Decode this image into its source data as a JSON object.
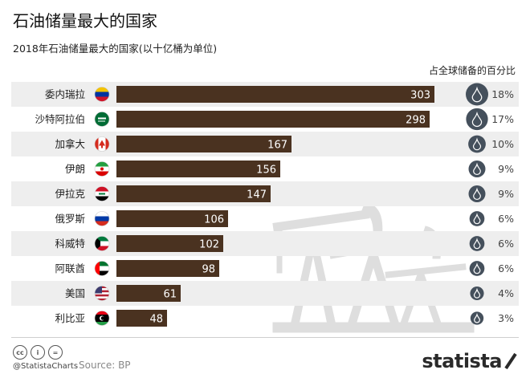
{
  "header": {
    "title": "石油储量最大的国家",
    "subtitle": "2018年石油储量最大的国家(以十亿桶为单位)",
    "column_header": "占全球储备的百分比"
  },
  "chart_data": {
    "type": "bar",
    "orientation": "horizontal",
    "categories": [
      "委内瑞拉",
      "沙特阿拉伯",
      "加拿大",
      "伊朗",
      "伊拉克",
      "俄罗斯",
      "科威特",
      "阿联酋",
      "美国",
      "利比亚"
    ],
    "values": [
      303,
      298,
      167,
      156,
      147,
      106,
      102,
      98,
      61,
      48
    ],
    "share_of_global": [
      "18%",
      "17%",
      "10%",
      "9%",
      "9%",
      "6%",
      "6%",
      "6%",
      "4%",
      "3%"
    ],
    "share_values": [
      18,
      17,
      10,
      9,
      9,
      6,
      6,
      6,
      4,
      3
    ],
    "xlim": [
      0,
      350
    ],
    "bar_color": "#4a3220",
    "row_shading": "#eeeeee",
    "icon_color": "#45505c",
    "flags": [
      "venezuela-flag",
      "saudi-arabia-flag",
      "canada-flag",
      "iran-flag",
      "iraq-flag",
      "russia-flag",
      "kuwait-flag",
      "uae-flag",
      "usa-flag",
      "libya-flag"
    ]
  },
  "footer": {
    "license_icons": [
      "cc-icon",
      "attribution-icon",
      "no-derivatives-icon"
    ],
    "handle": "@StatistaCharts",
    "source": "Source: BP",
    "logo": "statista"
  }
}
